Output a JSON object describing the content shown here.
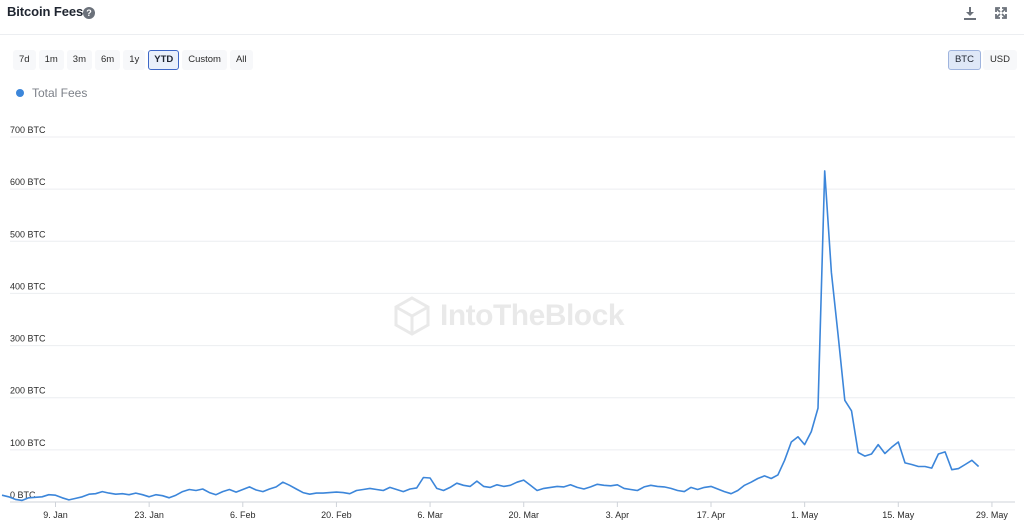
{
  "header": {
    "title": "Bitcoin Fees",
    "help_icon": "question-circle-icon",
    "download_icon": "download-icon",
    "expand_icon": "fullscreen-icon"
  },
  "range_buttons": [
    {
      "label": "7d",
      "active": false
    },
    {
      "label": "1m",
      "active": false
    },
    {
      "label": "3m",
      "active": false
    },
    {
      "label": "6m",
      "active": false
    },
    {
      "label": "1y",
      "active": false
    },
    {
      "label": "YTD",
      "active": true
    },
    {
      "label": "Custom",
      "active": false
    },
    {
      "label": "All",
      "active": false
    }
  ],
  "unit_buttons": [
    {
      "label": "BTC",
      "active": true
    },
    {
      "label": "USD",
      "active": false
    }
  ],
  "watermark": "IntoTheBlock",
  "colors": {
    "series": "#3c86da",
    "grid": "#eceef1",
    "active_border": "#3d67c7"
  },
  "chart_data": {
    "type": "line",
    "y_ticks": [
      "0 BTC",
      "100 BTC",
      "200 BTC",
      "300 BTC",
      "400 BTC",
      "500 BTC",
      "600 BTC",
      "700 BTC"
    ],
    "y_tick_values": [
      0,
      100,
      200,
      300,
      400,
      500,
      600,
      700
    ],
    "ylim": [
      0,
      700
    ],
    "x_ticks": [
      "9. Jan",
      "23. Jan",
      "6. Feb",
      "20. Feb",
      "6. Mar",
      "20. Mar",
      "3. Apr",
      "17. Apr",
      "1. May",
      "15. May",
      "29. May"
    ],
    "x_tick_days": [
      8,
      22,
      36,
      50,
      64,
      78,
      92,
      106,
      120,
      134,
      148
    ],
    "grid": true,
    "legend_position": "top-left",
    "series": [
      {
        "name": "Total Fees",
        "x_start": "1. Jan",
        "values": [
          13,
          10,
          5,
          3,
          8,
          9,
          10,
          14,
          13,
          8,
          4,
          7,
          10,
          15,
          16,
          20,
          17,
          15,
          16,
          14,
          17,
          14,
          10,
          14,
          12,
          8,
          13,
          20,
          24,
          22,
          25,
          18,
          14,
          20,
          24,
          19,
          24,
          29,
          23,
          20,
          25,
          29,
          38,
          32,
          25,
          18,
          15,
          17,
          17,
          18,
          19,
          18,
          16,
          22,
          24,
          26,
          24,
          22,
          28,
          24,
          20,
          25,
          27,
          47,
          46,
          26,
          22,
          28,
          36,
          32,
          30,
          40,
          30,
          28,
          33,
          30,
          32,
          38,
          42,
          32,
          22,
          26,
          28,
          30,
          29,
          33,
          28,
          25,
          29,
          34,
          32,
          31,
          33,
          26,
          24,
          22,
          29,
          32,
          30,
          29,
          26,
          22,
          20,
          28,
          24,
          28,
          30,
          25,
          20,
          16,
          22,
          32,
          38,
          45,
          50,
          45,
          52,
          80,
          115,
          125,
          110,
          135,
          180,
          635,
          440,
          320,
          195,
          175,
          95,
          88,
          92,
          110,
          93,
          105,
          115,
          75,
          72,
          68,
          68,
          65,
          92,
          96,
          62,
          64,
          72,
          80,
          68
        ]
      }
    ]
  }
}
